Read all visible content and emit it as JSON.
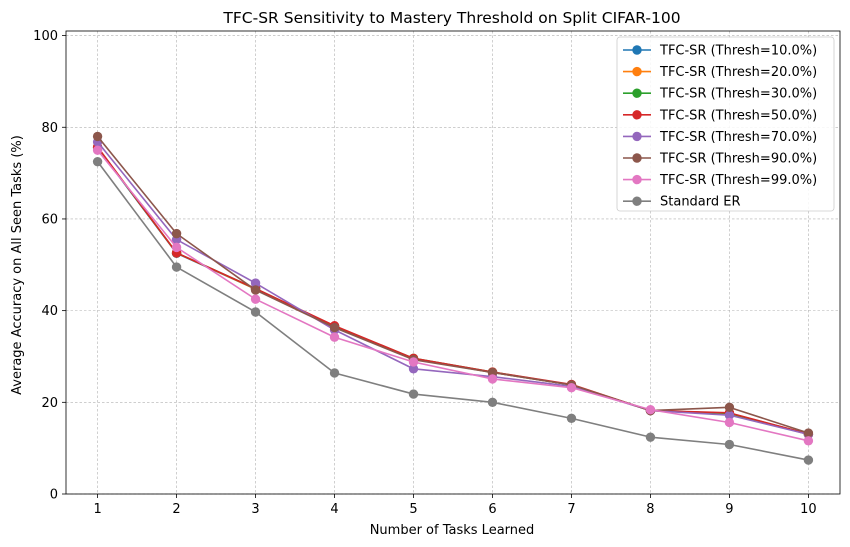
{
  "chart_data": {
    "type": "line",
    "title": "TFC-SR Sensitivity to Mastery Threshold on Split CIFAR-100",
    "xlabel": "Number of Tasks Learned",
    "ylabel": "Average Accuracy on All Seen Tasks (%)",
    "x": [
      1,
      2,
      3,
      4,
      5,
      6,
      7,
      8,
      9,
      10
    ],
    "xticks": [
      "1",
      "2",
      "3",
      "4",
      "5",
      "6",
      "7",
      "8",
      "9",
      "10"
    ],
    "yticks": [
      "0",
      "20",
      "40",
      "60",
      "80",
      "100"
    ],
    "xlim": [
      0.6,
      10.4
    ],
    "ylim": [
      0,
      101
    ],
    "grid": true,
    "legend_position": "top-right",
    "series": [
      {
        "name": "TFC-SR (Thresh=10.0%)",
        "color": "#1f77b4",
        "values": [
          75.5,
          52.5,
          44.7,
          36.5,
          29.5,
          26.5,
          23.8,
          18.2,
          17.6,
          13.0
        ]
      },
      {
        "name": "TFC-SR (Thresh=20.0%)",
        "color": "#ff7f0e",
        "values": [
          75.6,
          52.6,
          44.7,
          36.6,
          29.5,
          26.5,
          23.8,
          18.2,
          17.6,
          13.0
        ]
      },
      {
        "name": "TFC-SR (Thresh=30.0%)",
        "color": "#2ca02c",
        "values": [
          75.6,
          52.6,
          44.8,
          36.6,
          29.6,
          26.6,
          23.8,
          18.2,
          17.6,
          13.1
        ]
      },
      {
        "name": "TFC-SR (Thresh=50.0%)",
        "color": "#d62728",
        "values": [
          75.7,
          52.6,
          44.8,
          36.7,
          29.6,
          26.6,
          23.9,
          18.2,
          17.7,
          13.1
        ]
      },
      {
        "name": "TFC-SR (Thresh=70.0%)",
        "color": "#9467bd",
        "values": [
          76.8,
          55.5,
          46.0,
          35.8,
          27.3,
          25.6,
          23.5,
          18.2,
          17.2,
          13.0
        ]
      },
      {
        "name": "TFC-SR (Thresh=90.0%)",
        "color": "#8c564b",
        "values": [
          78.0,
          56.8,
          44.5,
          36.3,
          29.3,
          26.5,
          23.8,
          18.2,
          18.9,
          13.3
        ]
      },
      {
        "name": "TFC-SR (Thresh=99.0%)",
        "color": "#e377c2",
        "values": [
          75.0,
          53.8,
          42.5,
          34.2,
          28.8,
          25.1,
          23.2,
          18.4,
          15.6,
          11.6
        ]
      },
      {
        "name": "Standard ER",
        "color": "#7f7f7f",
        "values": [
          72.5,
          49.5,
          39.7,
          26.4,
          21.8,
          20.0,
          16.5,
          12.4,
          10.8,
          7.4
        ]
      }
    ]
  }
}
